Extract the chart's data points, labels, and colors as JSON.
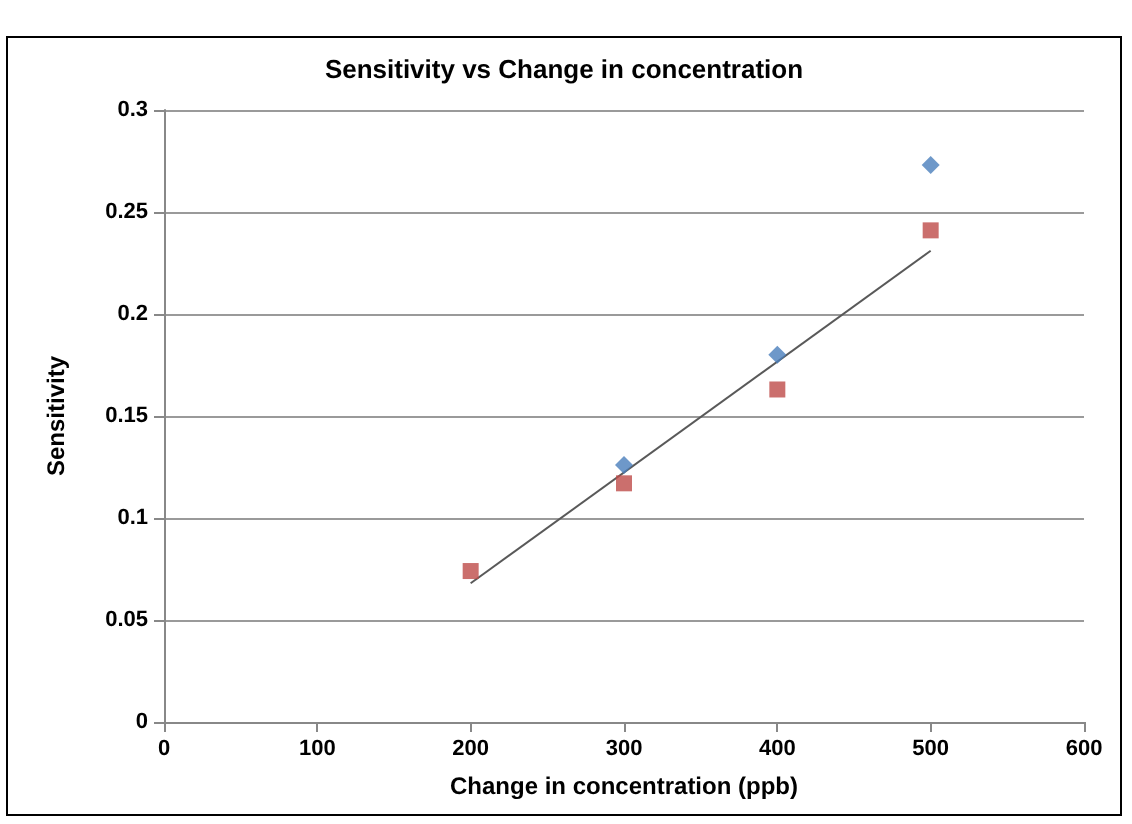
{
  "chart_data": {
    "type": "scatter",
    "title": "Sensitivity vs Change in concentration",
    "xlabel": "Change in concentration (ppb)",
    "ylabel": "Sensitivity",
    "x": [
      200,
      300,
      400,
      500
    ],
    "series": [
      {
        "color": "#4a7ebb",
        "marker": "diamond",
        "values": [
          null,
          0.126,
          0.18,
          0.273
        ]
      },
      {
        "color": "#be4b48",
        "marker": "square",
        "values": [
          0.074,
          0.117,
          0.163,
          0.241
        ]
      },
      {
        "type": "line",
        "color": "#595959",
        "x": [
          200,
          500
        ],
        "values": [
          0.068,
          0.231
        ],
        "marker": "none",
        "line_style": "solid"
      }
    ],
    "xlim": [
      0,
      600
    ],
    "xticks": [
      0,
      100,
      200,
      300,
      400,
      500,
      600
    ],
    "ylim": [
      0,
      0.3
    ],
    "yticks": [
      0,
      0.05,
      0.1,
      0.15,
      0.2,
      0.25,
      0.3
    ],
    "grid": "y"
  }
}
